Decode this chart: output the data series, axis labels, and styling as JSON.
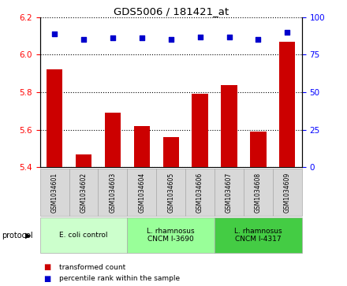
{
  "title": "GDS5006 / 181421_at",
  "samples": [
    "GSM1034601",
    "GSM1034602",
    "GSM1034603",
    "GSM1034604",
    "GSM1034605",
    "GSM1034606",
    "GSM1034607",
    "GSM1034608",
    "GSM1034609"
  ],
  "bar_values": [
    5.92,
    5.47,
    5.69,
    5.62,
    5.56,
    5.79,
    5.84,
    5.59,
    6.07
  ],
  "scatter_values": [
    89,
    85,
    86,
    86,
    85,
    87,
    87,
    85,
    90
  ],
  "ylim_left": [
    5.4,
    6.2
  ],
  "ylim_right": [
    0,
    100
  ],
  "yticks_left": [
    5.4,
    5.6,
    5.8,
    6.0,
    6.2
  ],
  "yticks_right": [
    0,
    25,
    50,
    75,
    100
  ],
  "bar_color": "#cc0000",
  "scatter_color": "#0000cc",
  "groups": [
    {
      "label": "E. coli control",
      "start": 0,
      "end": 3,
      "color": "#ccffcc"
    },
    {
      "label": "L. rhamnosus\nCNCM I-3690",
      "start": 3,
      "end": 6,
      "color": "#99ff99"
    },
    {
      "label": "L. rhamnosus\nCNCM I-4317",
      "start": 6,
      "end": 9,
      "color": "#44cc44"
    }
  ],
  "legend_bar_label": "transformed count",
  "legend_scatter_label": "percentile rank within the sample",
  "protocol_label": "protocol"
}
